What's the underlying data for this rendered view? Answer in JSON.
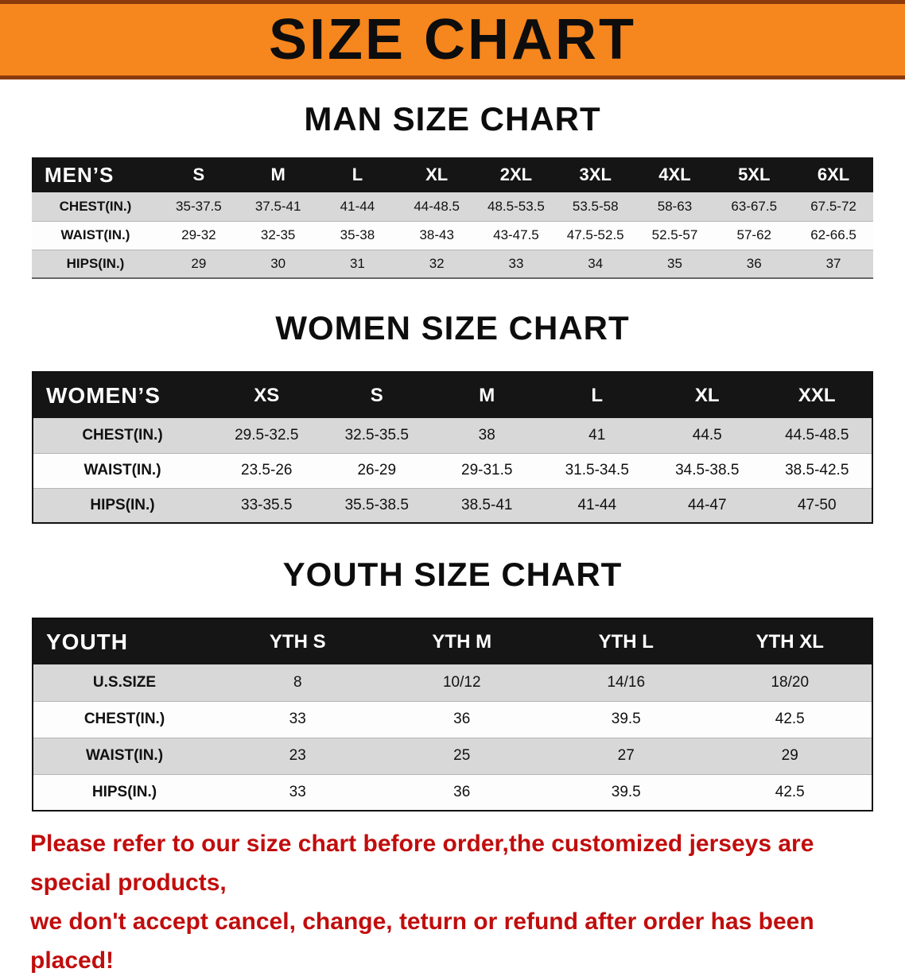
{
  "banner": {
    "title": "SIZE CHART",
    "bg_color": "#F6861E",
    "border_color": "#8a3a0c",
    "text_color": "#0d0d0d"
  },
  "sections": [
    {
      "id": "men",
      "heading": "MAN SIZE CHART",
      "table": {
        "corner_label": "MEN’S",
        "columns": [
          "S",
          "M",
          "L",
          "XL",
          "2XL",
          "3XL",
          "4XL",
          "5XL",
          "6XL"
        ],
        "rows": [
          {
            "label": "CHEST(IN.)",
            "values": [
              "35-37.5",
              "37.5-41",
              "41-44",
              "44-48.5",
              "48.5-53.5",
              "53.5-58",
              "58-63",
              "63-67.5",
              "67.5-72"
            ]
          },
          {
            "label": "WAIST(IN.)",
            "values": [
              "29-32",
              "32-35",
              "35-38",
              "38-43",
              "43-47.5",
              "47.5-52.5",
              "52.5-57",
              "57-62",
              "62-66.5"
            ]
          },
          {
            "label": "HIPS(IN.)",
            "values": [
              "29",
              "30",
              "31",
              "32",
              "33",
              "34",
              "35",
              "36",
              "37"
            ]
          }
        ]
      }
    },
    {
      "id": "women",
      "heading": "WOMEN SIZE CHART",
      "table": {
        "corner_label": "WOMEN’S",
        "columns": [
          "XS",
          "S",
          "M",
          "L",
          "XL",
          "XXL"
        ],
        "rows": [
          {
            "label": "CHEST(IN.)",
            "values": [
              "29.5-32.5",
              "32.5-35.5",
              "38",
              "41",
              "44.5",
              "44.5-48.5"
            ]
          },
          {
            "label": "WAIST(IN.)",
            "values": [
              "23.5-26",
              "26-29",
              "29-31.5",
              "31.5-34.5",
              "34.5-38.5",
              "38.5-42.5"
            ]
          },
          {
            "label": "HIPS(IN.)",
            "values": [
              "33-35.5",
              "35.5-38.5",
              "38.5-41",
              "41-44",
              "44-47",
              "47-50"
            ]
          }
        ]
      }
    },
    {
      "id": "youth",
      "heading": "YOUTH SIZE CHART",
      "table": {
        "corner_label": "YOUTH",
        "columns": [
          "YTH S",
          "YTH M",
          "YTH L",
          "YTH XL"
        ],
        "rows": [
          {
            "label": "U.S.SIZE",
            "values": [
              "8",
              "10/12",
              "14/16",
              "18/20"
            ]
          },
          {
            "label": "CHEST(IN.)",
            "values": [
              "33",
              "36",
              "39.5",
              "42.5"
            ]
          },
          {
            "label": "WAIST(IN.)",
            "values": [
              "23",
              "25",
              "27",
              "29"
            ]
          },
          {
            "label": "HIPS(IN.)",
            "values": [
              "33",
              "36",
              "39.5",
              "42.5"
            ]
          }
        ]
      }
    }
  ],
  "disclaimer": {
    "text_color": "#c10d0d",
    "lines": [
      "Please refer to our size chart before order,the customized jerseys are special products,",
      "we don't accept cancel, change, teturn or refund after order has been placed!"
    ]
  }
}
